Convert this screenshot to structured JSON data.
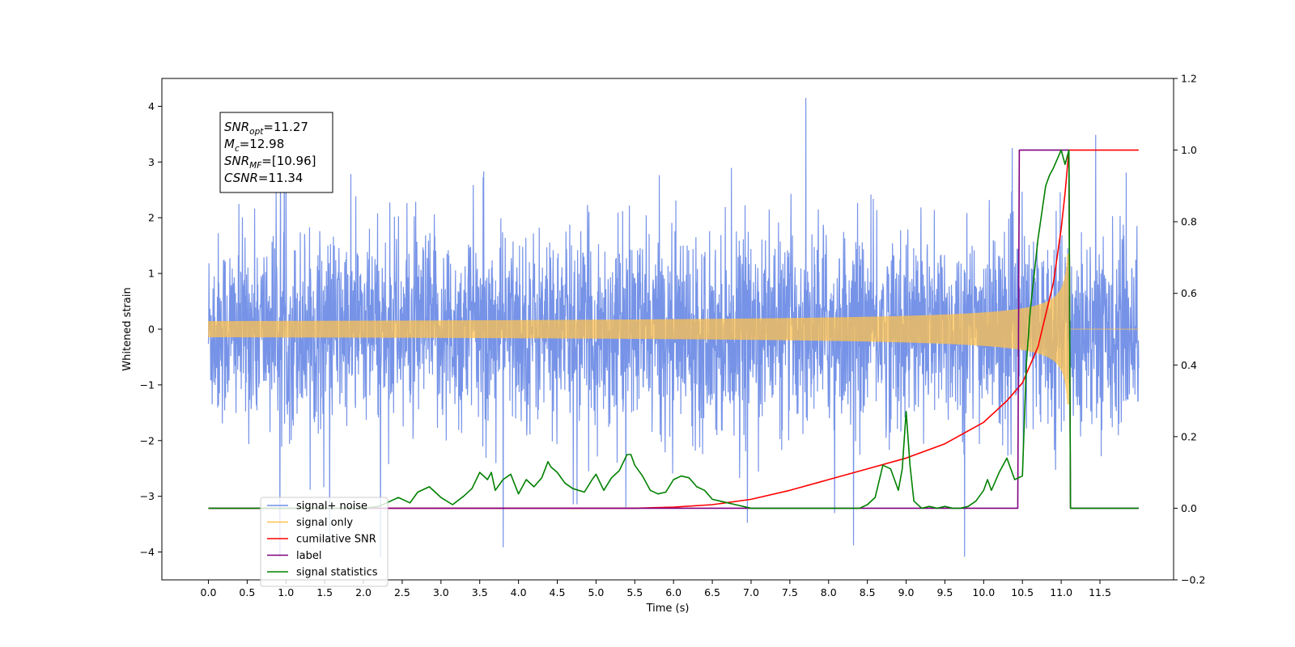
{
  "chart_data": {
    "type": "line",
    "title": "",
    "xlabel": "Time (s)",
    "ylabel": "Whitened strain",
    "y2label": "",
    "xlim": [
      -0.6,
      12.45
    ],
    "ylim": [
      -4.5,
      4.5
    ],
    "y2lim": [
      -0.2,
      1.2
    ],
    "xticks": [
      "0.0",
      "0.5",
      "1.0",
      "1.5",
      "2.0",
      "2.5",
      "3.0",
      "3.5",
      "4.0",
      "4.5",
      "5.0",
      "5.5",
      "6.0",
      "6.5",
      "7.0",
      "7.5",
      "8.0",
      "8.5",
      "9.0",
      "9.5",
      "10.0",
      "10.5",
      "11.0",
      "11.5"
    ],
    "yticks": [
      "4",
      "3",
      "2",
      "1",
      "0",
      "−1",
      "−2",
      "−3",
      "−4"
    ],
    "y2ticks": [
      "1.2",
      "1.0",
      "0.8",
      "0.6",
      "0.4",
      "0.2",
      "0.0",
      "−0.2"
    ],
    "grid": false,
    "legend_position": "lower-left",
    "annotation": {
      "lines": [
        {
          "base": "SNR",
          "sub": "opt",
          "rest": "=11.27"
        },
        {
          "base": "M",
          "sub": "c",
          "rest": "=12.98"
        },
        {
          "base": "SNR",
          "sub": "MF",
          "rest": "=[10.96]"
        },
        {
          "base": "CSNR",
          "sub": "",
          "rest": "=11.34"
        }
      ]
    },
    "series": [
      {
        "name": "signal+ noise",
        "axis": "left",
        "color": "#6f8de6",
        "note": "whitened noisy strain, roughly Gaussian, amplitude ~±1.5 with peaks to ±4, spans 0.0–12.0 s"
      },
      {
        "name": "signal only",
        "axis": "left",
        "color": "#ffc14d",
        "note": "chirp waveform, amplitude grows from ~0 to ~1.3 peaking near 11.1 s then drops to 0"
      },
      {
        "name": "cumilative SNR",
        "axis": "right",
        "color": "#ff0000",
        "x": [
          0.0,
          5.5,
          6.0,
          6.5,
          7.0,
          7.5,
          8.0,
          8.5,
          9.0,
          9.5,
          10.0,
          10.3,
          10.5,
          10.7,
          10.9,
          11.0,
          11.05,
          11.1,
          11.12,
          12.0
        ],
        "y": [
          0.0,
          0.0,
          0.003,
          0.01,
          0.025,
          0.05,
          0.08,
          0.11,
          0.14,
          0.18,
          0.24,
          0.3,
          0.35,
          0.45,
          0.63,
          0.78,
          0.88,
          1.0,
          1.0,
          1.0
        ]
      },
      {
        "name": "label",
        "axis": "right",
        "color": "#800080",
        "x": [
          0.0,
          10.44,
          10.46,
          11.1,
          11.12,
          12.0
        ],
        "y": [
          0.0,
          0.0,
          1.0,
          1.0,
          0.0,
          0.0
        ]
      },
      {
        "name": "signal statistics",
        "axis": "right",
        "color": "#008000",
        "x": [
          0.0,
          2.0,
          2.2,
          2.35,
          2.45,
          2.6,
          2.7,
          2.85,
          3.0,
          3.15,
          3.3,
          3.4,
          3.5,
          3.6,
          3.65,
          3.7,
          3.8,
          3.9,
          4.0,
          4.1,
          4.2,
          4.3,
          4.38,
          4.42,
          4.5,
          4.6,
          4.7,
          4.85,
          4.95,
          5.0,
          5.1,
          5.2,
          5.3,
          5.4,
          5.45,
          5.5,
          5.6,
          5.7,
          5.8,
          5.9,
          6.0,
          6.1,
          6.2,
          6.3,
          6.4,
          6.5,
          6.6,
          6.7,
          6.8,
          7.0,
          7.2,
          7.4,
          8.0,
          8.4,
          8.5,
          8.6,
          8.7,
          8.8,
          8.9,
          8.95,
          9.0,
          9.05,
          9.1,
          9.2,
          9.3,
          9.4,
          9.5,
          9.6,
          9.7,
          9.8,
          9.9,
          10.0,
          10.05,
          10.1,
          10.2,
          10.3,
          10.4,
          10.5,
          10.55,
          10.6,
          10.7,
          10.8,
          10.85,
          10.9,
          11.0,
          11.05,
          11.1,
          11.12,
          11.2,
          12.0
        ],
        "y": [
          0.0,
          0.0,
          0.005,
          0.02,
          0.03,
          0.015,
          0.045,
          0.06,
          0.03,
          0.01,
          0.035,
          0.055,
          0.1,
          0.08,
          0.1,
          0.05,
          0.08,
          0.095,
          0.04,
          0.08,
          0.06,
          0.085,
          0.13,
          0.115,
          0.1,
          0.07,
          0.055,
          0.045,
          0.08,
          0.095,
          0.05,
          0.085,
          0.105,
          0.15,
          0.15,
          0.12,
          0.09,
          0.05,
          0.04,
          0.045,
          0.08,
          0.09,
          0.085,
          0.06,
          0.05,
          0.025,
          0.02,
          0.015,
          0.01,
          0.0,
          0.0,
          0.0,
          0.0,
          0.0,
          0.01,
          0.03,
          0.12,
          0.11,
          0.05,
          0.11,
          0.27,
          0.12,
          0.02,
          0.0,
          0.005,
          0.0,
          0.005,
          0.0,
          0.0,
          0.005,
          0.02,
          0.05,
          0.08,
          0.05,
          0.1,
          0.14,
          0.08,
          0.09,
          0.4,
          0.55,
          0.75,
          0.9,
          0.93,
          0.95,
          1.0,
          0.96,
          1.0,
          0.0,
          0.0,
          0.0
        ]
      }
    ]
  }
}
